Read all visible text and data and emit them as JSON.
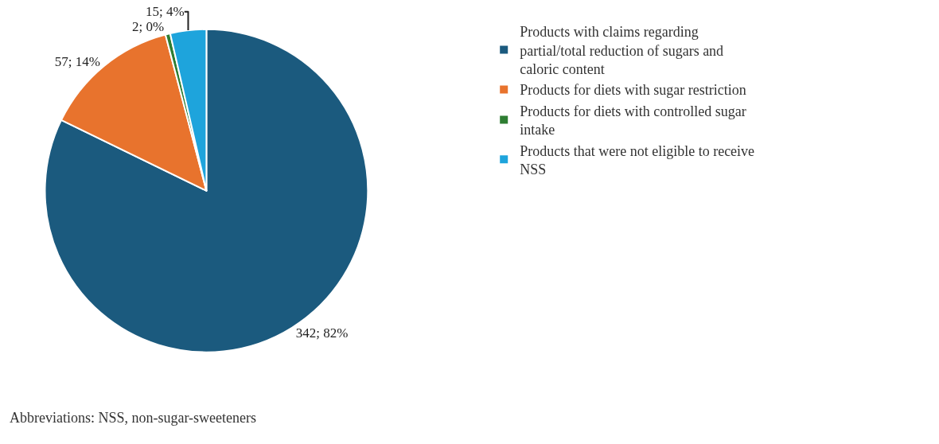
{
  "chart_data": {
    "type": "pie",
    "categories": [
      "Products with claims regarding partial/total reduction of sugars and caloric content",
      "Products for diets with sugar restriction",
      "Products for diets with controlled sugar intake",
      "Products that were not eligible to receive NSS"
    ],
    "values": [
      342,
      57,
      2,
      15
    ],
    "colors": [
      "#1b5a7e",
      "#e8732d",
      "#2e7d32",
      "#1ea4dc"
    ],
    "value_labels": [
      "342; 82%",
      "57; 14%",
      "2; 0%",
      "15; 4%"
    ],
    "legend": "right",
    "annotations": [
      "Abbreviations: NSS, non-sugar-sweeteners"
    ]
  }
}
